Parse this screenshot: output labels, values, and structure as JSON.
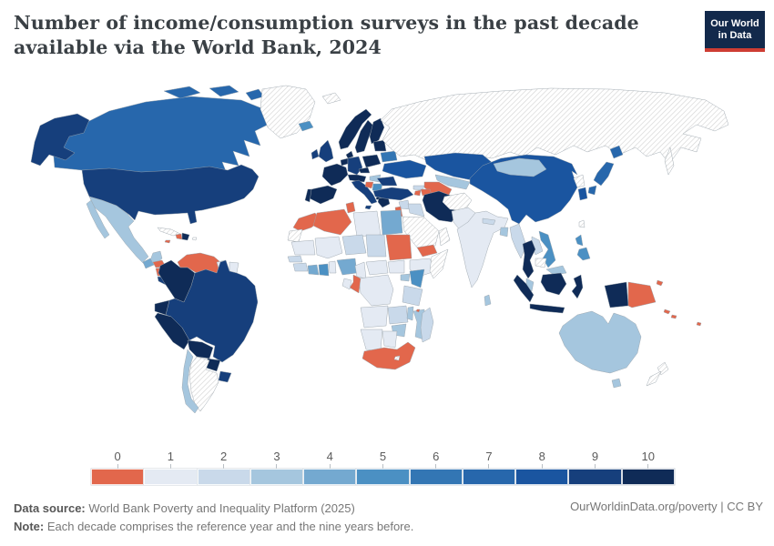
{
  "header": {
    "title": "Number of income/consumption surveys in the past decade available via the World Bank, 2024",
    "logo_line1": "Our World",
    "logo_line2": "in Data"
  },
  "legend": {
    "tick_labels": [
      "0",
      "1",
      "2",
      "3",
      "4",
      "5",
      "6",
      "7",
      "8",
      "9",
      "10"
    ],
    "colors": [
      "#E2674C",
      "#E4EAF3",
      "#C9D9EA",
      "#A5C6DE",
      "#74A9D0",
      "#4B90C3",
      "#3376B4",
      "#2767AC",
      "#1A55A0",
      "#163F7C",
      "#0F2B57"
    ]
  },
  "footer": {
    "data_source_label": "Data source:",
    "data_source_text": " World Bank Poverty and Inequality Platform (2025)",
    "note_label": "Note:",
    "note_text": " Each decade comprises the reference year and the nine years before.",
    "credit": "OurWorldinData.org/poverty | CC BY"
  },
  "chart_data": {
    "type": "heatmap",
    "subtype": "world-choropleth",
    "title": "Number of income/consumption surveys in the past decade available via the World Bank",
    "year": "2024",
    "value_min": 0,
    "value_max": 10,
    "legend_values": [
      0,
      1,
      2,
      3,
      4,
      5,
      6,
      7,
      8,
      9,
      10
    ],
    "countries": {
      "canada": 7,
      "usa": 9,
      "greenland": null,
      "mexico": 3,
      "guatemala": 4,
      "honduras": 0,
      "nicaragua": 0,
      "costa-rica": 9,
      "panama": 9,
      "cuba": null,
      "jamaica": 0,
      "haiti": 0,
      "dominican-republic": 10,
      "puerto-rico": null,
      "venezuela": 0,
      "guyana": 1,
      "suriname": 1,
      "colombia": 10,
      "ecuador": 10,
      "peru": 10,
      "brazil": 9,
      "bolivia": 10,
      "paraguay": 10,
      "uruguay": 9,
      "argentina": null,
      "chile": 3,
      "iceland": 5,
      "norway": 10,
      "sweden": 10,
      "finland": 10,
      "denmark": 10,
      "united-kingdom": 9,
      "ireland": 9,
      "france": 10,
      "spain": 10,
      "portugal": 10,
      "belgium-netherlands": 10,
      "germany": 9,
      "switzerland-austria": 10,
      "italy": 9,
      "poland": 10,
      "czechia": 10,
      "hungary": 3,
      "croatia": 0,
      "serbia-bosnia": 5,
      "albania": 10,
      "greece": 10,
      "bulgaria": 9,
      "romania": 9,
      "ukraine": 8,
      "belarus": 6,
      "baltics": 10,
      "turkey": 9,
      "georgia": 2,
      "armenia": 0,
      "azerbaijan": 0,
      "syria": 2,
      "iraq": 2,
      "jordan-israel": 0,
      "saudi-arabia": null,
      "yemen": 0,
      "oman": null,
      "iran": 10,
      "kazakhstan": 8,
      "uzbekistan": 3,
      "turkmenistan": 0,
      "kyrgyzstan": 10,
      "tajikistan": 2,
      "afghanistan": null,
      "pakistan": 1,
      "india": 1,
      "nepal": 2,
      "bangladesh": 3,
      "sri-lanka": 3,
      "myanmar": 2,
      "thailand": 10,
      "laos": 2,
      "vietnam": 5,
      "cambodia": null,
      "malaysia": 3,
      "indonesia": 10,
      "philippines": 5,
      "china": 8,
      "mongolia": 3,
      "north-korea": null,
      "south-korea": 8,
      "japan": 7,
      "taiwan": null,
      "papua-new-guinea": 0,
      "solomon-islands": 0,
      "fiji": 0,
      "morocco": 0,
      "western-sahara": null,
      "algeria": 0,
      "tunisia": 0,
      "libya": 1,
      "egypt": 4,
      "mauritania": 1,
      "mali": 1,
      "niger": 2,
      "chad": 2,
      "sudan": 0,
      "ethiopia": 1,
      "somalia": null,
      "senegal": 2,
      "guinea": 2,
      "ivory-coast": 4,
      "ghana": 5,
      "benin-togo": 1,
      "nigeria": 4,
      "cameroon": 1,
      "central-african-republic": 1,
      "south-sudan": 1,
      "uganda": 3,
      "kenya": 5,
      "congo": 0,
      "gabon": 1,
      "dr-congo": 1,
      "tanzania": 2,
      "angola": 1,
      "zambia": 2,
      "malawi": 3,
      "mozambique": 3,
      "zimbabwe": 3,
      "namibia": 1,
      "botswana": 1,
      "south-africa": 0,
      "lesotho": null,
      "madagascar": 2,
      "comoros": 0,
      "australia": 3,
      "new-zealand": null
    },
    "no_data_style": "diagonal-hatch"
  }
}
